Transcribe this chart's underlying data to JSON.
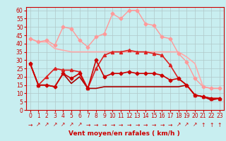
{
  "title": "",
  "xlabel": "Vent moyen/en rafales ( km/h )",
  "xlim": [
    -0.5,
    23.5
  ],
  "ylim": [
    0,
    62
  ],
  "yticks": [
    0,
    5,
    10,
    15,
    20,
    25,
    30,
    35,
    40,
    45,
    50,
    55,
    60
  ],
  "xticks": [
    0,
    1,
    2,
    3,
    4,
    5,
    6,
    7,
    8,
    9,
    10,
    11,
    12,
    13,
    14,
    15,
    16,
    17,
    18,
    19,
    20,
    21,
    22,
    23
  ],
  "background_color": "#c8eef0",
  "grid_color": "#b0c8c8",
  "series": [
    {
      "x": [
        0,
        1,
        2,
        3,
        4,
        5,
        6,
        7,
        8,
        9,
        10,
        11,
        12,
        13,
        14,
        15,
        16,
        17,
        18,
        19,
        20,
        21,
        22,
        23
      ],
      "y": [
        43,
        41,
        41,
        37,
        36,
        35,
        35,
        35,
        35,
        35,
        35,
        35,
        35,
        35,
        35,
        35,
        35,
        35,
        35,
        32,
        28,
        14,
        13,
        13
      ],
      "color": "#ffaaaa",
      "marker": null,
      "linewidth": 1.2,
      "markersize": 0
    },
    {
      "x": [
        0,
        1,
        2,
        3,
        4,
        5,
        6,
        7,
        8,
        9,
        10,
        11,
        12,
        13,
        14,
        15,
        16,
        17,
        18,
        19,
        20,
        21,
        22,
        23
      ],
      "y": [
        43,
        41,
        42,
        39,
        50,
        49,
        42,
        38,
        44,
        46,
        58,
        55,
        60,
        60,
        52,
        51,
        44,
        43,
        34,
        29,
        19,
        14,
        13,
        13
      ],
      "color": "#ff9999",
      "marker": "D",
      "linewidth": 1.0,
      "markersize": 2.5
    },
    {
      "x": [
        0,
        1,
        2,
        3,
        4,
        5,
        6,
        7,
        8,
        9,
        10,
        11,
        12,
        13,
        14,
        15,
        16,
        17,
        18,
        19,
        20,
        21,
        22,
        23
      ],
      "y": [
        28,
        15,
        20,
        25,
        24,
        24,
        23,
        13,
        25,
        33,
        35,
        35,
        36,
        35,
        35,
        34,
        33,
        27,
        19,
        15,
        9,
        8,
        7,
        7
      ],
      "color": "#dd2222",
      "marker": "^",
      "linewidth": 1.2,
      "markersize": 3
    },
    {
      "x": [
        0,
        1,
        2,
        3,
        4,
        5,
        6,
        7,
        8,
        9,
        10,
        11,
        12,
        13,
        14,
        15,
        16,
        17,
        18,
        19,
        20,
        21,
        22,
        23
      ],
      "y": [
        28,
        15,
        15,
        14,
        22,
        19,
        22,
        13,
        30,
        20,
        22,
        22,
        23,
        22,
        22,
        22,
        21,
        18,
        19,
        15,
        9,
        8,
        7,
        7
      ],
      "color": "#cc0000",
      "marker": "D",
      "linewidth": 1.2,
      "markersize": 2.5
    },
    {
      "x": [
        0,
        1,
        2,
        3,
        4,
        5,
        6,
        7,
        8,
        9,
        10,
        11,
        12,
        13,
        14,
        15,
        16,
        17,
        18,
        19,
        20,
        21,
        22,
        23
      ],
      "y": [
        28,
        15,
        15,
        14,
        22,
        16,
        20,
        13,
        13,
        14,
        14,
        14,
        14,
        14,
        14,
        14,
        14,
        14,
        14,
        15,
        9,
        8,
        6,
        7
      ],
      "color": "#aa0000",
      "marker": null,
      "linewidth": 1.2,
      "markersize": 0
    }
  ],
  "wind_chars": [
    "→",
    "↗",
    "↗",
    "↗",
    "↗",
    "↗",
    "↗",
    "→",
    "→",
    "→",
    "→",
    "→",
    "→",
    "→",
    "→",
    "→",
    "→",
    "→",
    "↗",
    "↗",
    "↗",
    "↑",
    "↑",
    "↑"
  ]
}
